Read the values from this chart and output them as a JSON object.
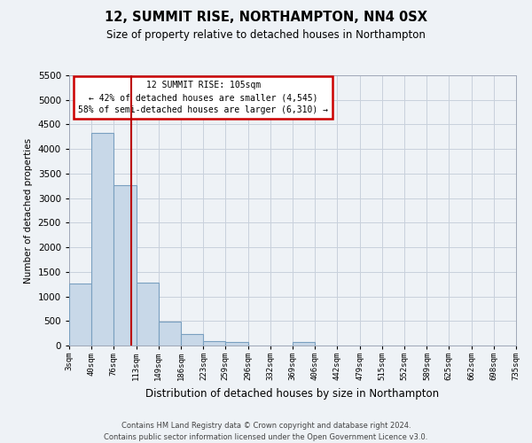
{
  "title": "12, SUMMIT RISE, NORTHAMPTON, NN4 0SX",
  "subtitle": "Size of property relative to detached houses in Northampton",
  "xlabel": "Distribution of detached houses by size in Northampton",
  "ylabel": "Number of detached properties",
  "bin_edges": [
    3,
    40,
    76,
    113,
    149,
    186,
    223,
    259,
    296,
    332,
    369,
    406,
    442,
    479,
    515,
    552,
    589,
    625,
    662,
    698,
    735
  ],
  "bar_heights": [
    1270,
    4330,
    3270,
    1280,
    480,
    230,
    90,
    70,
    0,
    0,
    70,
    0,
    0,
    0,
    0,
    0,
    0,
    0,
    0,
    0
  ],
  "bar_color": "#c8d8e8",
  "bar_edge_color": "#7aa0c0",
  "bar_edge_width": 0.8,
  "grid_color": "#c8d0dc",
  "background_color": "#eef2f6",
  "vline_x": 105,
  "vline_color": "#bb0000",
  "ylim": [
    0,
    5500
  ],
  "yticks": [
    0,
    500,
    1000,
    1500,
    2000,
    2500,
    3000,
    3500,
    4000,
    4500,
    5000,
    5500
  ],
  "annotation_title": "12 SUMMIT RISE: 105sqm",
  "annotation_line1": "← 42% of detached houses are smaller (4,545)",
  "annotation_line2": "58% of semi-detached houses are larger (6,310) →",
  "annotation_box_facecolor": "#ffffff",
  "annotation_box_edgecolor": "#cc0000",
  "footer_line1": "Contains HM Land Registry data © Crown copyright and database right 2024.",
  "footer_line2": "Contains public sector information licensed under the Open Government Licence v3.0.",
  "tick_labels": [
    "3sqm",
    "40sqm",
    "76sqm",
    "113sqm",
    "149sqm",
    "186sqm",
    "223sqm",
    "259sqm",
    "296sqm",
    "332sqm",
    "369sqm",
    "406sqm",
    "442sqm",
    "479sqm",
    "515sqm",
    "552sqm",
    "589sqm",
    "625sqm",
    "662sqm",
    "698sqm",
    "735sqm"
  ]
}
